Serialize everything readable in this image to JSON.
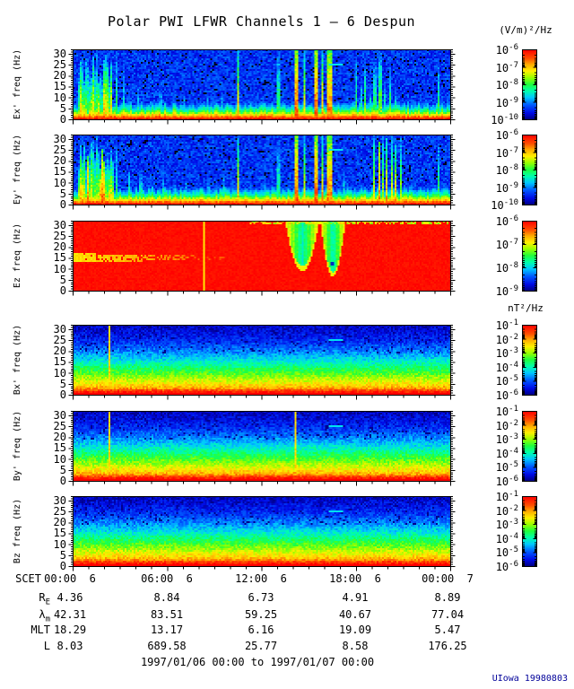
{
  "title": "Polar PWI LFWR Channels 1 — 6 Despun",
  "units": {
    "electric": "(V/m)²/Hz",
    "magnetic": "nT²/Hz"
  },
  "scet": {
    "label": "SCET",
    "ticks": [
      "00:00  6",
      "06:00  6",
      "12:00  6",
      "18:00  6",
      "00:00  7"
    ]
  },
  "ephemeris": [
    {
      "main": "R",
      "sub": "E",
      "values": [
        "4.36",
        "8.84",
        "6.73",
        "4.91",
        "8.89"
      ]
    },
    {
      "main": "λ",
      "sub": "m",
      "values": [
        "42.31",
        "83.51",
        "59.25",
        "40.67",
        "77.04"
      ]
    },
    {
      "main": "MLT",
      "sub": "",
      "values": [
        "18.29",
        "13.17",
        "6.16",
        "19.09",
        "5.47"
      ]
    },
    {
      "main": "L",
      "sub": "",
      "values": [
        "8.03",
        "689.58",
        "25.77",
        "8.58",
        "176.25"
      ]
    }
  ],
  "footer": {
    "date_range": "1997/01/06 00:00 to 1997/01/07 00:00",
    "credit": "UIowa 19980803",
    "credit_color": "#000099"
  },
  "chart_data": {
    "type": "heatmap",
    "subtype": "multi-panel time-frequency spectrogram",
    "title": "Polar PWI LFWR Channels 1 — 6 Despun",
    "time_range": {
      "start": "1997/01/06 00:00",
      "end": "1997/01/07 00:00"
    },
    "x_label": "SCET",
    "x_ticks": [
      "00:00  6",
      "06:00  6",
      "12:00  6",
      "18:00  6",
      "00:00  7"
    ],
    "freq_range_hz": [
      0,
      32
    ],
    "freq_ticks": [
      30,
      25,
      20,
      15,
      10,
      5,
      0
    ],
    "colormap": "rainbow (blue=low, red=high)",
    "panels": [
      {
        "id": "ex",
        "ylabel": "Ex' freq (Hz)",
        "unit": "(V/m)²/Hz",
        "colorbar_exponents": [
          -6,
          -7,
          -8,
          -9,
          -10
        ],
        "render": "e_noise",
        "seed": 11,
        "features": {
          "burst": [
            0.012,
            0.105
          ],
          "streaks": [
            [
              0.118,
              0.004,
              0.95,
              0.62
            ],
            [
              0.133,
              0.002,
              1.0,
              0.5
            ],
            [
              0.148,
              0.003,
              0.4,
              0.52
            ],
            [
              0.175,
              0.004,
              0.52,
              0.55
            ],
            [
              0.205,
              0.003,
              0.33,
              0.5
            ],
            [
              0.232,
              0.004,
              0.45,
              0.55
            ],
            [
              0.262,
              0.003,
              0.3,
              0.5
            ],
            [
              0.297,
              0.003,
              0.5,
              0.52
            ],
            [
              0.322,
              0.003,
              0.33,
              0.5
            ],
            [
              0.357,
              0.003,
              0.42,
              0.55
            ],
            [
              0.397,
              0.003,
              0.45,
              0.52
            ],
            [
              0.437,
              0.0025,
              1.0,
              0.88
            ],
            [
              0.468,
              0.003,
              0.3,
              0.5
            ],
            [
              0.505,
              0.003,
              0.36,
              0.5
            ],
            [
              0.545,
              0.0025,
              1.0,
              0.62
            ],
            [
              0.594,
              0.01,
              1.0,
              0.97
            ],
            [
              0.6145,
              0.005,
              1.0,
              0.82
            ],
            [
              0.643,
              0.009,
              1.0,
              0.97
            ],
            [
              0.663,
              0.004,
              1.0,
              0.9
            ],
            [
              0.679,
              0.012,
              1.0,
              0.93
            ],
            [
              0.752,
              0.004,
              0.9,
              0.66
            ],
            [
              0.764,
              0.003,
              0.6,
              0.6
            ],
            [
              0.776,
              0.004,
              0.85,
              0.7
            ],
            [
              0.789,
              0.003,
              0.5,
              0.6
            ],
            [
              0.801,
              0.004,
              0.8,
              0.66
            ],
            [
              0.815,
              0.003,
              0.95,
              0.7
            ],
            [
              0.827,
              0.004,
              0.55,
              0.6
            ],
            [
              0.841,
              0.003,
              0.75,
              0.66
            ],
            [
              0.856,
              0.003,
              0.45,
              0.6
            ],
            [
              0.905,
              0.003,
              0.3,
              0.5
            ],
            [
              0.935,
              0.003,
              0.25,
              0.45
            ],
            [
              0.968,
              0.004,
              0.85,
              0.62
            ]
          ],
          "marker": [
            0.695,
            25.5
          ]
        }
      },
      {
        "id": "ey",
        "ylabel": "Ey' freq (Hz)",
        "unit": "(V/m)²/Hz",
        "colorbar_exponents": [
          -6,
          -7,
          -8,
          -9,
          -10
        ],
        "render": "e_noise",
        "seed": 22,
        "features": {
          "burst": [
            0.012,
            0.11
          ],
          "streaks": [
            [
              0.118,
              0.004,
              0.9,
              0.6
            ],
            [
              0.15,
              0.004,
              0.55,
              0.6
            ],
            [
              0.18,
              0.004,
              0.5,
              0.58
            ],
            [
              0.21,
              0.003,
              0.4,
              0.55
            ],
            [
              0.24,
              0.004,
              0.5,
              0.58
            ],
            [
              0.27,
              0.003,
              0.35,
              0.5
            ],
            [
              0.3,
              0.003,
              0.45,
              0.52
            ],
            [
              0.33,
              0.003,
              0.3,
              0.5
            ],
            [
              0.36,
              0.003,
              0.4,
              0.52
            ],
            [
              0.4,
              0.003,
              0.5,
              0.55
            ],
            [
              0.437,
              0.0025,
              1.0,
              0.85
            ],
            [
              0.47,
              0.003,
              0.3,
              0.5
            ],
            [
              0.51,
              0.003,
              0.4,
              0.5
            ],
            [
              0.545,
              0.0025,
              0.9,
              0.6
            ],
            [
              0.594,
              0.01,
              1.0,
              0.97
            ],
            [
              0.6145,
              0.005,
              1.0,
              0.82
            ],
            [
              0.643,
              0.009,
              1.0,
              0.97
            ],
            [
              0.663,
              0.004,
              1.0,
              0.9
            ],
            [
              0.679,
              0.012,
              1.0,
              0.93
            ],
            [
              0.72,
              0.003,
              0.5,
              0.55
            ],
            [
              0.8,
              0.005,
              1.0,
              0.8
            ],
            [
              0.812,
              0.004,
              0.9,
              0.92
            ],
            [
              0.822,
              0.004,
              1.0,
              0.75
            ],
            [
              0.833,
              0.005,
              0.95,
              0.9
            ],
            [
              0.845,
              0.004,
              1.0,
              0.8
            ],
            [
              0.856,
              0.004,
              0.85,
              0.9
            ],
            [
              0.868,
              0.004,
              0.95,
              0.75
            ],
            [
              0.905,
              0.003,
              0.35,
              0.5
            ],
            [
              0.94,
              0.003,
              0.3,
              0.5
            ],
            [
              0.968,
              0.004,
              0.9,
              0.65
            ]
          ],
          "marker": [
            0.695,
            25.5
          ]
        }
      },
      {
        "id": "ez",
        "ylabel": "Ez freq (Hz)",
        "unit": "(V/m)²/Hz",
        "colorbar_exponents": [
          -6,
          -7,
          -8,
          -9
        ],
        "render": "e_red",
        "seed": 33,
        "features": {
          "hline_f": 15,
          "hline_x1": 0.42,
          "vline": 0.35,
          "funnels": [
            [
              0.608,
              0.045,
              0.72,
              0
            ],
            [
              0.689,
              0.033,
              0.8,
              1
            ]
          ],
          "top_speckle": [
            0.47,
            1.0
          ]
        }
      },
      {
        "id": "bx",
        "ylabel": "Bx' freq (Hz)",
        "unit": "nT²/Hz",
        "colorbar_exponents": [
          -1,
          -2,
          -3,
          -4,
          -5,
          -6
        ],
        "render": "b_gradient",
        "seed": 44,
        "features": {
          "vlines": [
            0.097
          ],
          "marker": [
            0.695,
            25.5
          ]
        }
      },
      {
        "id": "by",
        "ylabel": "By' freq (Hz)",
        "unit": "nT²/Hz",
        "colorbar_exponents": [
          -1,
          -2,
          -3,
          -4,
          -5,
          -6
        ],
        "render": "b_gradient",
        "seed": 55,
        "features": {
          "vlines": [
            0.097,
            0.592
          ],
          "marker": [
            0.695,
            25.5
          ]
        }
      },
      {
        "id": "bz",
        "ylabel": "Bz freq (Hz)",
        "unit": "nT²/Hz",
        "colorbar_exponents": [
          -1,
          -2,
          -3,
          -4,
          -5,
          -6
        ],
        "render": "b_gradient",
        "seed": 66,
        "features": {
          "vlines": [],
          "marker": [
            0.695,
            25.5
          ]
        }
      }
    ],
    "ephemeris": {
      "row_labels": [
        "R_E",
        "λ_m",
        "MLT",
        "L"
      ],
      "R_E": [
        4.36,
        8.84,
        6.73,
        4.91,
        8.89
      ],
      "λ_m": [
        42.31,
        83.51,
        59.25,
        40.67,
        77.04
      ],
      "MLT": [
        18.29,
        13.17,
        6.16,
        19.09,
        5.47
      ],
      "L": [
        8.03,
        689.58,
        25.77,
        8.58,
        176.25
      ]
    }
  }
}
